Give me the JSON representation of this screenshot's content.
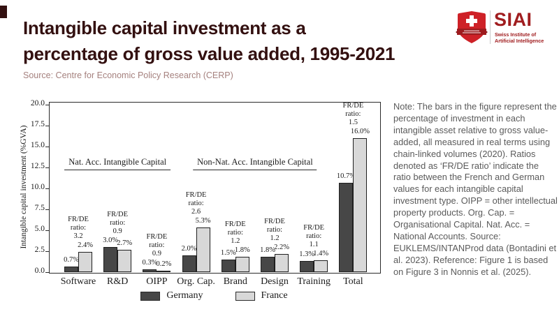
{
  "header": {
    "title_line1": "Intangible capital investment as a",
    "title_line2": "percentage of gross value added, 1995-2021",
    "source": "Source: Centre for Economic Policy Research (CERP)",
    "logo": {
      "acronym": "SIAI",
      "org_line1": "Swiss Institute of",
      "org_line2": "Artificial Intelligence"
    }
  },
  "note": "Note: The bars in the figure represent the percentage of investment in each intangible asset relative to gross value-added, all measured in real terms using chain-linked volumes (2020). Ratios denoted as ‘FR/DE ratio’ indicate the ratio between the French and German values for each intangible capital investment type. OIPP = other intellectual property products. Org. Cap. = Organisational Capital. Nat. Acc. = National Accounts. Source: EUKLEMS/INTANProd data (Bontadini et al. 2023). Reference: Figure 1 is based on Figure 3 in Nonnis et al. (2025).",
  "colors": {
    "title": "#331010",
    "source": "#a5817e",
    "note_text": "#5a5a5a",
    "accent_red": "#ce2127",
    "banner_red": "#9e1b1e",
    "logo_text_red": "#a01d1f",
    "germany": "#474747",
    "france": "#d8d8d8"
  },
  "chart_data": {
    "type": "bar",
    "title": "",
    "xlabel": "",
    "ylabel": "Intangible capital investment (%GVA)",
    "ylim": [
      0,
      20.6
    ],
    "yticks": [
      0.0,
      2.5,
      5.0,
      7.5,
      10.0,
      12.5,
      15.0,
      17.5,
      20.0
    ],
    "grid": false,
    "legend_position": "bottom",
    "categories": [
      "Software",
      "R&D",
      "OIPP",
      "Org. Cap.",
      "Brand",
      "Design",
      "Training",
      "Total"
    ],
    "series": [
      {
        "name": "Germany",
        "color": "#474747",
        "values": [
          0.7,
          3.0,
          0.3,
          2.0,
          1.5,
          1.8,
          1.3,
          10.7
        ],
        "labels": [
          "0.7%",
          "3.0%",
          "0.3%",
          "2.0%",
          "1.5%",
          "1.8%",
          "1.3%",
          "10.7%"
        ]
      },
      {
        "name": "France",
        "color": "#d8d8d8",
        "values": [
          2.4,
          2.7,
          0.2,
          5.3,
          1.8,
          2.2,
          1.4,
          16.0
        ],
        "labels": [
          "2.4%",
          "2.7%",
          "0.2%",
          "5.3%",
          "1.8%",
          "2.2%",
          "1.4%",
          "16.0%"
        ]
      }
    ],
    "ratio_prefix_lines": [
      "FR/DE",
      "ratio:"
    ],
    "ratios": [
      3.2,
      0.9,
      0.9,
      2.6,
      1.2,
      1.2,
      1.1,
      1.5
    ],
    "section_labels": [
      {
        "text": "Nat. Acc. Intangible Capital",
        "from": 0,
        "to": 2,
        "y_value": 12
      },
      {
        "text": "Non-Nat. Acc. Intangible Capital",
        "from": 3,
        "to": 6,
        "y_value": 12
      }
    ]
  }
}
